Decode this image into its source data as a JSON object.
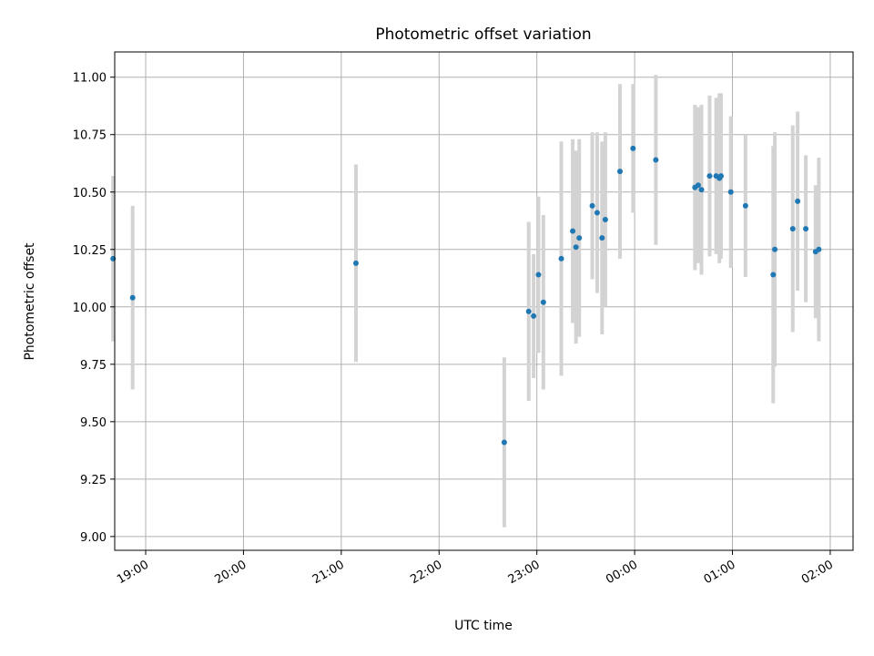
{
  "chart_data": {
    "type": "scatter",
    "title": "Photometric offset variation",
    "xlabel": "UTC time",
    "ylabel": "Photometric offset",
    "x_axis_type": "time",
    "x_ticks": [
      "19:00",
      "20:00",
      "21:00",
      "22:00",
      "23:00",
      "00:00",
      "01:00",
      "02:00"
    ],
    "y_ticks": [
      9.0,
      9.25,
      9.5,
      9.75,
      10.0,
      10.25,
      10.5,
      10.75,
      11.0
    ],
    "xlim": [
      "18:41",
      "02:14"
    ],
    "ylim": [
      8.94,
      11.11
    ],
    "grid": true,
    "marker_color": "#1f77b4",
    "errorbar_color": "#d3d3d3",
    "points": [
      {
        "x": "18:40",
        "y": 10.21,
        "err": 0.36
      },
      {
        "x": "18:52",
        "y": 10.04,
        "err": 0.4
      },
      {
        "x": "21:09",
        "y": 10.19,
        "err": 0.43
      },
      {
        "x": "22:40",
        "y": 9.41,
        "err": 0.37
      },
      {
        "x": "22:55",
        "y": 9.98,
        "err": 0.39
      },
      {
        "x": "22:58",
        "y": 9.96,
        "err": 0.27
      },
      {
        "x": "23:01",
        "y": 10.14,
        "err": 0.34
      },
      {
        "x": "23:04",
        "y": 10.02,
        "err": 0.38
      },
      {
        "x": "23:15",
        "y": 10.21,
        "err": 0.51
      },
      {
        "x": "23:22",
        "y": 10.33,
        "err": 0.4
      },
      {
        "x": "23:24",
        "y": 10.26,
        "err": 0.42
      },
      {
        "x": "23:26",
        "y": 10.3,
        "err": 0.43
      },
      {
        "x": "23:34",
        "y": 10.44,
        "err": 0.32
      },
      {
        "x": "23:37",
        "y": 10.41,
        "err": 0.35
      },
      {
        "x": "23:40",
        "y": 10.3,
        "err": 0.42
      },
      {
        "x": "23:42",
        "y": 10.38,
        "err": 0.38
      },
      {
        "x": "23:51",
        "y": 10.59,
        "err": 0.38
      },
      {
        "x": "23:59",
        "y": 10.69,
        "err": 0.28
      },
      {
        "x": "00:13",
        "y": 10.64,
        "err": 0.37
      },
      {
        "x": "00:37",
        "y": 10.52,
        "err": 0.36
      },
      {
        "x": "00:39",
        "y": 10.53,
        "err": 0.34
      },
      {
        "x": "00:41",
        "y": 10.51,
        "err": 0.37
      },
      {
        "x": "00:46",
        "y": 10.57,
        "err": 0.35
      },
      {
        "x": "00:50",
        "y": 10.57,
        "err": 0.34
      },
      {
        "x": "00:52",
        "y": 10.56,
        "err": 0.37
      },
      {
        "x": "00:53",
        "y": 10.57,
        "err": 0.36
      },
      {
        "x": "00:59",
        "y": 10.5,
        "err": 0.33
      },
      {
        "x": "01:08",
        "y": 10.44,
        "err": 0.31
      },
      {
        "x": "01:25",
        "y": 10.14,
        "err": 0.56
      },
      {
        "x": "01:26",
        "y": 10.25,
        "err": 0.51
      },
      {
        "x": "01:37",
        "y": 10.34,
        "err": 0.45
      },
      {
        "x": "01:40",
        "y": 10.46,
        "err": 0.39
      },
      {
        "x": "01:45",
        "y": 10.34,
        "err": 0.32
      },
      {
        "x": "01:51",
        "y": 10.24,
        "err": 0.29
      },
      {
        "x": "01:53",
        "y": 10.25,
        "err": 0.4
      }
    ]
  }
}
